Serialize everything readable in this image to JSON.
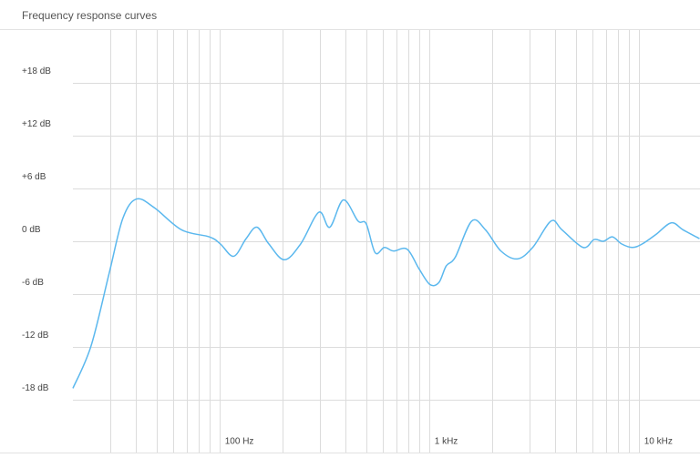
{
  "chart_data": {
    "type": "line",
    "title": "Frequency response curves",
    "x": [
      20,
      24.4,
      29.8,
      34.6,
      40.2,
      49,
      66,
      89.6,
      101,
      117,
      134,
      151,
      172,
      204,
      244,
      298,
      336,
      390,
      458,
      501,
      553,
      612,
      676,
      786,
      894,
      1008,
      1113,
      1207,
      1334,
      1597,
      1858,
      2200,
      2635,
      3120,
      3818,
      4306,
      5428,
      6129,
      6776,
      7490,
      8287,
      9314,
      10400,
      12120,
      14300,
      16280,
      19500
    ],
    "series": [
      {
        "color": "#5bb8ee",
        "values": [
          -16.7,
          -11.9,
          -3.6,
          2.6,
          4.8,
          3.8,
          1.3,
          0.5,
          -0.3,
          -1.7,
          0.3,
          1.6,
          -0.3,
          -2.1,
          -0.3,
          3.3,
          1.6,
          4.7,
          2.3,
          2.0,
          -1.3,
          -0.7,
          -1.1,
          -0.9,
          -3.1,
          -4.9,
          -4.7,
          -2.8,
          -1.8,
          2.3,
          1.3,
          -1.1,
          -2.0,
          -0.7,
          2.3,
          1.3,
          -0.7,
          0.2,
          0,
          0.5,
          -0.3,
          -0.7,
          -0.3,
          0.8,
          2.1,
          1.3,
          0.3
        ]
      }
    ],
    "xscale": "log",
    "xlim": [
      20,
      20000
    ],
    "ylim": [
      -24,
      24
    ],
    "xticks": [
      {
        "value": 100,
        "label": "100 Hz"
      },
      {
        "value": 1000,
        "label": "1 kHz"
      },
      {
        "value": 10000,
        "label": "10 kHz"
      }
    ],
    "xgrid": [
      30,
      40,
      50,
      60,
      70,
      80,
      90,
      100,
      200,
      300,
      400,
      500,
      600,
      700,
      800,
      900,
      1000,
      2000,
      3000,
      4000,
      5000,
      6000,
      7000,
      8000,
      9000,
      10000,
      20000
    ],
    "yticks": [
      {
        "value": 18,
        "label": "+18 dB"
      },
      {
        "value": 12,
        "label": "+12 dB"
      },
      {
        "value": 6,
        "label": "+6 dB"
      },
      {
        "value": 0,
        "label": "0 dB"
      },
      {
        "value": -6,
        "label": "-6 dB"
      },
      {
        "value": -12,
        "label": "-12 dB"
      },
      {
        "value": -18,
        "label": "-18 dB"
      }
    ]
  }
}
